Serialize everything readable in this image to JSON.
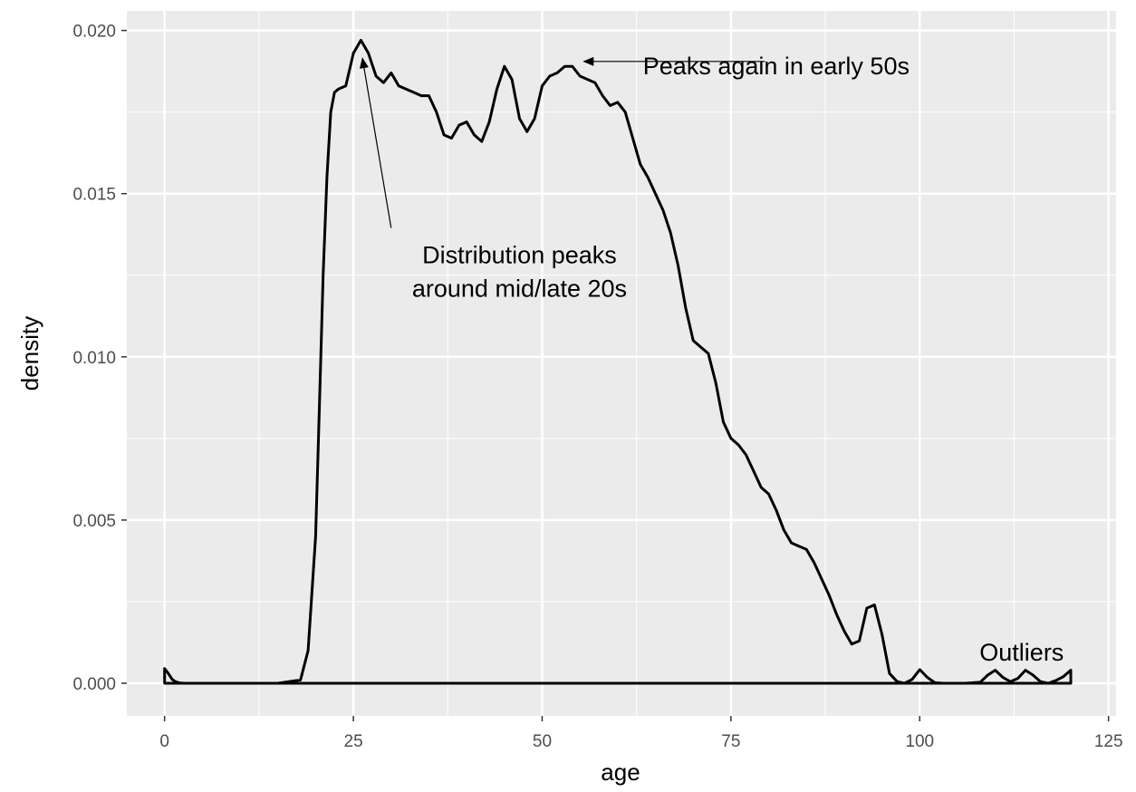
{
  "chart_data": {
    "type": "area",
    "title": "",
    "xlabel": "age",
    "ylabel": "density",
    "xlim": [
      -5,
      126
    ],
    "ylim": [
      -0.001,
      0.0206
    ],
    "x_ticks": [
      0,
      25,
      50,
      75,
      100,
      125
    ],
    "x_tick_labels": [
      "0",
      "25",
      "50",
      "75",
      "100",
      "125"
    ],
    "y_ticks": [
      0.0,
      0.005,
      0.01,
      0.015,
      0.02
    ],
    "y_tick_labels": [
      "0.000",
      "0.005",
      "0.010",
      "0.015",
      "0.020"
    ],
    "grid": true,
    "background": "#ebebeb",
    "grid_color": "#ffffff",
    "line_color": "#000000",
    "series": [
      {
        "x": [
          0,
          0.5,
          1,
          1.5,
          2,
          2.5,
          3,
          5,
          10,
          15,
          18,
          19,
          20,
          20.5,
          21,
          21.5,
          22,
          22.5,
          23,
          24,
          25,
          26,
          27,
          28,
          29,
          30,
          31,
          32,
          33,
          34,
          35,
          36,
          37,
          38,
          39,
          40,
          41,
          42,
          43,
          44,
          45,
          46,
          47,
          48,
          49,
          50,
          51,
          52,
          53,
          54,
          55,
          56,
          57,
          58,
          59,
          60,
          61,
          62,
          63,
          64,
          65,
          66,
          67,
          68,
          69,
          70,
          71,
          72,
          73,
          74,
          75,
          76,
          77,
          78,
          79,
          80,
          81,
          82,
          83,
          84,
          85,
          86,
          87,
          88,
          89,
          90,
          91,
          92,
          93,
          94,
          95,
          96,
          97,
          98,
          99,
          100,
          101,
          102,
          103,
          106,
          108,
          109,
          110,
          111,
          112,
          113,
          114,
          115,
          116,
          117,
          118,
          119,
          120
        ],
        "y": [
          0.00045,
          0.0003,
          0.00012,
          4e-05,
          1e-05,
          0.0,
          0.0,
          0.0,
          0.0,
          0.0,
          0.0001,
          0.001,
          0.0045,
          0.0085,
          0.0125,
          0.0155,
          0.0175,
          0.0181,
          0.0182,
          0.0183,
          0.0193,
          0.0197,
          0.0193,
          0.0186,
          0.0184,
          0.0187,
          0.0183,
          0.0182,
          0.0181,
          0.018,
          0.018,
          0.0175,
          0.0168,
          0.0167,
          0.0171,
          0.0172,
          0.0168,
          0.0166,
          0.0172,
          0.0182,
          0.0189,
          0.0185,
          0.0173,
          0.0169,
          0.0173,
          0.0183,
          0.0186,
          0.0187,
          0.0189,
          0.0189,
          0.0186,
          0.0185,
          0.0184,
          0.018,
          0.0177,
          0.0178,
          0.0175,
          0.0167,
          0.0159,
          0.0155,
          0.015,
          0.0145,
          0.0138,
          0.0128,
          0.0115,
          0.0105,
          0.0103,
          0.0101,
          0.0092,
          0.008,
          0.0075,
          0.0073,
          0.007,
          0.0065,
          0.006,
          0.0058,
          0.0053,
          0.0047,
          0.0043,
          0.0042,
          0.0041,
          0.0037,
          0.0032,
          0.0027,
          0.0021,
          0.0016,
          0.0012,
          0.0013,
          0.0023,
          0.0024,
          0.0015,
          0.0003,
          5e-05,
          0.0,
          0.00012,
          0.00042,
          0.00018,
          2e-05,
          0.0,
          0.0,
          3e-05,
          0.00025,
          0.0004,
          0.00018,
          5e-05,
          0.00015,
          0.0004,
          0.00025,
          5e-05,
          0.0,
          8e-05,
          0.0002,
          0.0004
        ]
      }
    ],
    "annotations": [
      {
        "lines": [
          "Peaks again in early 50s"
        ],
        "text_x": 81,
        "text_y": 0.0189,
        "arrow_from": [
          79.5,
          0.01905
        ],
        "arrow_to": [
          55.5,
          0.01905
        ]
      },
      {
        "lines": [
          "Distribution peaks",
          "around mid/late 20s"
        ],
        "text_x": 47,
        "text_y": 0.0126,
        "arrow_from": [
          30,
          0.01395
        ],
        "arrow_to": [
          26.2,
          0.01915
        ]
      },
      {
        "lines": [
          "Outliers"
        ],
        "text_x": 113.5,
        "text_y": 0.00094,
        "arrow_from": null,
        "arrow_to": null
      }
    ]
  }
}
